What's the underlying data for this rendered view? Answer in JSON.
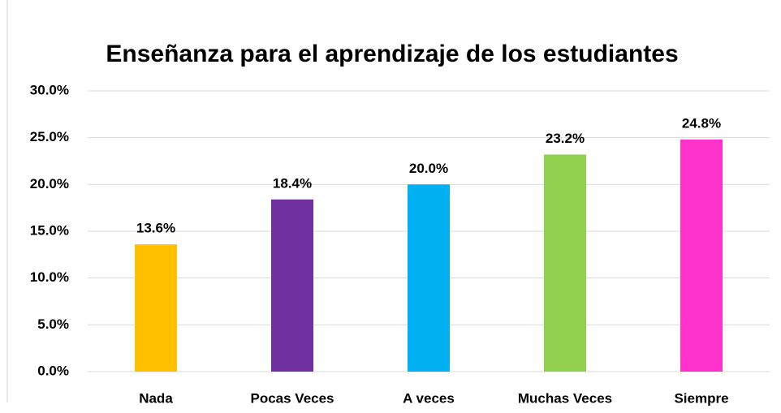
{
  "chart_data": {
    "type": "bar",
    "title": "Enseñanza para el aprendizaje de los estudiantes",
    "categories": [
      "Nada",
      "Pocas Veces",
      "A veces",
      "Muchas Veces",
      "Siempre"
    ],
    "values": [
      13.6,
      18.4,
      20.0,
      23.2,
      24.8
    ],
    "value_labels": [
      "13.6%",
      "18.4%",
      "20.0%",
      "23.2%",
      "24.8%"
    ],
    "colors": [
      "#ffc000",
      "#7030a0",
      "#00b0f0",
      "#92d050",
      "#ff33cc"
    ],
    "ylim": [
      0,
      30
    ],
    "yticks": [
      {
        "value": 0,
        "label": "0.0%"
      },
      {
        "value": 5,
        "label": "5.0%"
      },
      {
        "value": 10,
        "label": "10.0%"
      },
      {
        "value": 15,
        "label": "15.0%"
      },
      {
        "value": 20,
        "label": "20.0%"
      },
      {
        "value": 25,
        "label": "25.0%"
      },
      {
        "value": 30,
        "label": "30.0%"
      }
    ],
    "grid": true
  }
}
